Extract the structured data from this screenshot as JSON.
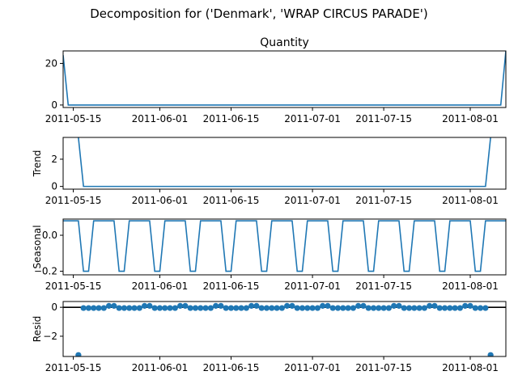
{
  "figure": {
    "suptitle": "Decomposition for ('Denmark', 'WRAP CIRCUS PARADE')"
  },
  "colors": {
    "line": "#1f77b4",
    "axis": "#000000",
    "zero_line": "#000000"
  },
  "chart_data": [
    {
      "type": "line",
      "title": "Quantity",
      "ylabel": "",
      "x_range": [
        "2011-05-13",
        "2011-08-08"
      ],
      "ylim": [
        -1.2,
        26
      ],
      "yticks": [
        0,
        20
      ],
      "xticks": [
        "2011-05-15",
        "2011-06-01",
        "2011-06-15",
        "2011-07-01",
        "2011-07-15",
        "2011-08-01"
      ],
      "points": [
        {
          "x": "2011-05-13",
          "y": 24
        },
        {
          "x": "2011-05-14",
          "y": 0
        },
        {
          "x": "2011-08-07",
          "y": 0
        },
        {
          "x": "2011-08-08",
          "y": 26
        }
      ]
    },
    {
      "type": "line",
      "title": "",
      "ylabel": "Trend",
      "x_range": [
        "2011-05-13",
        "2011-08-08"
      ],
      "ylim": [
        -0.2,
        3.6
      ],
      "yticks": [
        0,
        2
      ],
      "xticks": [
        "2011-05-15",
        "2011-06-01",
        "2011-06-15",
        "2011-07-01",
        "2011-07-15",
        "2011-08-01"
      ],
      "points": [
        {
          "x": "2011-05-16",
          "y": 3.6
        },
        {
          "x": "2011-05-17",
          "y": 0
        },
        {
          "x": "2011-08-04",
          "y": 0
        },
        {
          "x": "2011-08-05",
          "y": 3.6
        }
      ]
    },
    {
      "type": "line",
      "title": "",
      "ylabel": "Seasonal",
      "x_range": [
        "2011-05-13",
        "2011-08-08"
      ],
      "ylim": [
        -0.22,
        0.09
      ],
      "yticks": [
        0.0,
        -0.2
      ],
      "ytick_labels": [
        "0.0",
        "−0.2"
      ],
      "xticks": [
        "2011-05-15",
        "2011-06-01",
        "2011-06-15",
        "2011-07-01",
        "2011-07-15",
        "2011-08-01"
      ],
      "period_days": 7,
      "weekly_pattern": [
        0.08,
        0.08,
        0.08,
        0.08,
        -0.2,
        -0.2,
        0.08
      ],
      "start": "2011-05-13"
    },
    {
      "type": "scatter",
      "title": "",
      "ylabel": "Resid",
      "x_range": [
        "2011-05-13",
        "2011-08-08"
      ],
      "ylim": [
        -3.4,
        0.4
      ],
      "yticks": [
        0,
        -2
      ],
      "ytick_labels": [
        "0",
        "−2"
      ],
      "xticks": [
        "2011-05-15",
        "2011-06-01",
        "2011-06-15",
        "2011-07-01",
        "2011-07-15",
        "2011-08-01"
      ],
      "zero_line": true,
      "start": "2011-05-16",
      "end": "2011-08-05",
      "outliers": [
        {
          "x": "2011-05-16",
          "y": -3.3
        },
        {
          "x": "2011-08-05",
          "y": -3.3
        }
      ],
      "weekly_pattern": [
        0.1,
        -0.05,
        -0.05,
        -0.05,
        -0.05,
        -0.05,
        0.1
      ]
    }
  ]
}
